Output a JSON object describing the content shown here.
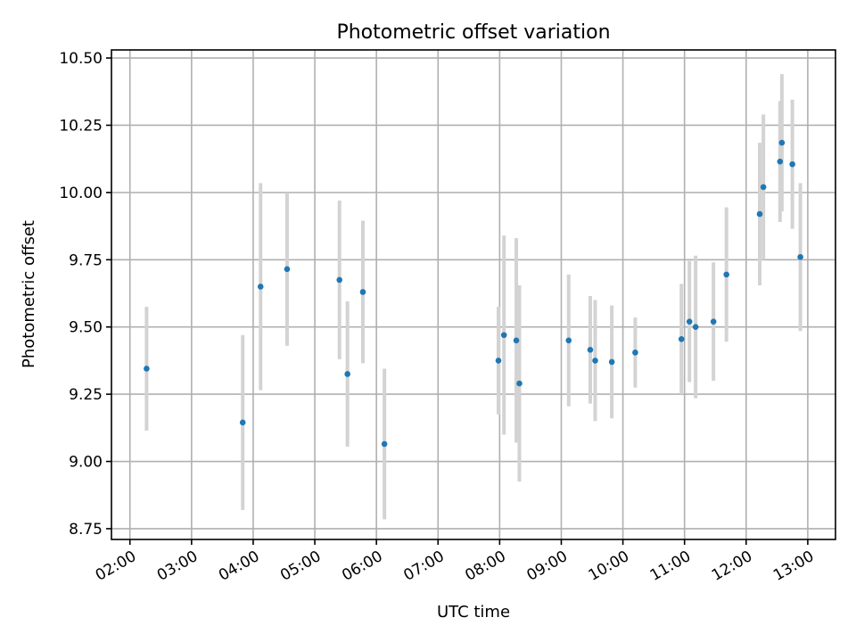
{
  "chart_data": {
    "type": "scatter",
    "title": "Photometric offset variation",
    "xlabel": "UTC time",
    "ylabel": "Photometric offset",
    "x_unit": "hours UTC",
    "xlim": [
      1.7,
      13.45
    ],
    "ylim": [
      8.71,
      10.53
    ],
    "x_ticks": [
      {
        "value": 2,
        "label": "02:00"
      },
      {
        "value": 3,
        "label": "03:00"
      },
      {
        "value": 4,
        "label": "04:00"
      },
      {
        "value": 5,
        "label": "05:00"
      },
      {
        "value": 6,
        "label": "06:00"
      },
      {
        "value": 7,
        "label": "07:00"
      },
      {
        "value": 8,
        "label": "08:00"
      },
      {
        "value": 9,
        "label": "09:00"
      },
      {
        "value": 10,
        "label": "10:00"
      },
      {
        "value": 11,
        "label": "11:00"
      },
      {
        "value": 12,
        "label": "12:00"
      },
      {
        "value": 13,
        "label": "13:00"
      }
    ],
    "y_ticks": [
      {
        "value": 8.75,
        "label": "8.75"
      },
      {
        "value": 9.0,
        "label": "9.00"
      },
      {
        "value": 9.25,
        "label": "9.25"
      },
      {
        "value": 9.5,
        "label": "9.50"
      },
      {
        "value": 9.75,
        "label": "9.75"
      },
      {
        "value": 10.0,
        "label": "10.00"
      },
      {
        "value": 10.25,
        "label": "10.25"
      },
      {
        "value": 10.5,
        "label": "10.50"
      }
    ],
    "grid": true,
    "marker_color": "#1f77b4",
    "errorbar_color": "#d3d3d3",
    "points": [
      {
        "x": 2.27,
        "y": 9.345,
        "err": 0.23
      },
      {
        "x": 3.83,
        "y": 9.145,
        "err": 0.325
      },
      {
        "x": 4.12,
        "y": 9.65,
        "err": 0.385
      },
      {
        "x": 4.55,
        "y": 9.715,
        "err": 0.285
      },
      {
        "x": 5.4,
        "y": 9.675,
        "err": 0.295
      },
      {
        "x": 5.53,
        "y": 9.325,
        "err": 0.27
      },
      {
        "x": 5.78,
        "y": 9.63,
        "err": 0.265
      },
      {
        "x": 6.13,
        "y": 9.065,
        "err": 0.28
      },
      {
        "x": 7.98,
        "y": 9.375,
        "err": 0.2
      },
      {
        "x": 8.07,
        "y": 9.47,
        "err": 0.37
      },
      {
        "x": 8.27,
        "y": 9.45,
        "err": 0.38
      },
      {
        "x": 8.32,
        "y": 9.29,
        "err": 0.365
      },
      {
        "x": 9.12,
        "y": 9.45,
        "err": 0.245
      },
      {
        "x": 9.47,
        "y": 9.415,
        "err": 0.2
      },
      {
        "x": 9.55,
        "y": 9.375,
        "err": 0.225
      },
      {
        "x": 9.82,
        "y": 9.37,
        "err": 0.21
      },
      {
        "x": 10.2,
        "y": 9.405,
        "err": 0.13
      },
      {
        "x": 10.95,
        "y": 9.455,
        "err": 0.205
      },
      {
        "x": 11.08,
        "y": 9.52,
        "err": 0.225
      },
      {
        "x": 11.18,
        "y": 9.5,
        "err": 0.265
      },
      {
        "x": 11.47,
        "y": 9.52,
        "err": 0.22
      },
      {
        "x": 11.68,
        "y": 9.695,
        "err": 0.25
      },
      {
        "x": 12.22,
        "y": 9.92,
        "err": 0.265
      },
      {
        "x": 12.28,
        "y": 10.02,
        "err": 0.27
      },
      {
        "x": 12.55,
        "y": 10.115,
        "err": 0.225
      },
      {
        "x": 12.58,
        "y": 10.185,
        "err": 0.255
      },
      {
        "x": 12.75,
        "y": 10.105,
        "err": 0.24
      },
      {
        "x": 12.88,
        "y": 9.76,
        "err": 0.275
      }
    ]
  }
}
